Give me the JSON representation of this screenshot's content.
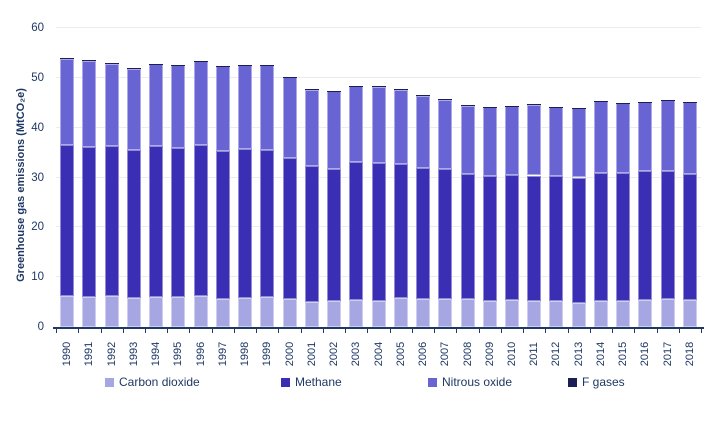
{
  "chart_data": {
    "type": "bar",
    "stacked": true,
    "title": "",
    "xlabel": "",
    "ylabel": "Greenhouse gas emissions (MtCO₂e)",
    "ylim": [
      0,
      60
    ],
    "yticks": [
      0,
      10,
      20,
      30,
      40,
      50,
      60
    ],
    "grid": "horizontal",
    "legend_position": "bottom",
    "categories": [
      "1990",
      "1991",
      "1992",
      "1993",
      "1994",
      "1995",
      "1996",
      "1997",
      "1998",
      "1999",
      "2000",
      "2001",
      "2002",
      "2003",
      "2004",
      "2005",
      "2006",
      "2007",
      "2008",
      "2009",
      "2010",
      "2011",
      "2012",
      "2013",
      "2014",
      "2015",
      "2016",
      "2017",
      "2018"
    ],
    "series": [
      {
        "name": "Carbon dioxide",
        "color": "#a6a6e2",
        "values": [
          6.3,
          6.1,
          6.3,
          5.9,
          6.1,
          6.1,
          6.3,
          5.6,
          5.8,
          6.0,
          5.6,
          5.1,
          5.3,
          5.5,
          5.3,
          5.9,
          5.7,
          5.7,
          5.6,
          5.3,
          5.5,
          5.3,
          5.3,
          4.9,
          5.3,
          5.3,
          5.5,
          5.6,
          5.5
        ]
      },
      {
        "name": "Methane",
        "color": "#3a2fb4",
        "values": [
          30.3,
          30.0,
          30.1,
          29.7,
          30.2,
          29.8,
          30.2,
          29.7,
          29.9,
          29.5,
          28.3,
          27.2,
          26.4,
          27.6,
          27.6,
          26.9,
          26.2,
          26.1,
          25.1,
          25.0,
          25.0,
          25.1,
          25.0,
          25.1,
          25.7,
          25.6,
          25.8,
          25.7,
          25.3
        ]
      },
      {
        "name": "Nitrous oxide",
        "color": "#6864d3",
        "values": [
          17.2,
          17.3,
          16.4,
          16.2,
          16.4,
          16.6,
          16.8,
          17.0,
          16.8,
          17.0,
          16.2,
          15.3,
          15.6,
          15.2,
          15.3,
          14.8,
          14.5,
          13.8,
          13.7,
          13.8,
          13.8,
          14.2,
          13.8,
          13.9,
          14.3,
          14.0,
          13.8,
          14.2,
          14.3
        ]
      },
      {
        "name": "F gases",
        "color": "#1e1e56",
        "values": [
          0.1,
          0.1,
          0.1,
          0.1,
          0.1,
          0.1,
          0.1,
          0.1,
          0.1,
          0.1,
          0.1,
          0.1,
          0.1,
          0.1,
          0.1,
          0.1,
          0.1,
          0.1,
          0.1,
          0.1,
          0.1,
          0.1,
          0.1,
          0.1,
          0.1,
          0.1,
          0.1,
          0.1,
          0.1
        ]
      }
    ]
  },
  "colors": {
    "axis_text": "#1f3864",
    "axis_line": "#1f3864",
    "gridline": "#ececec",
    "background": "#ffffff"
  }
}
